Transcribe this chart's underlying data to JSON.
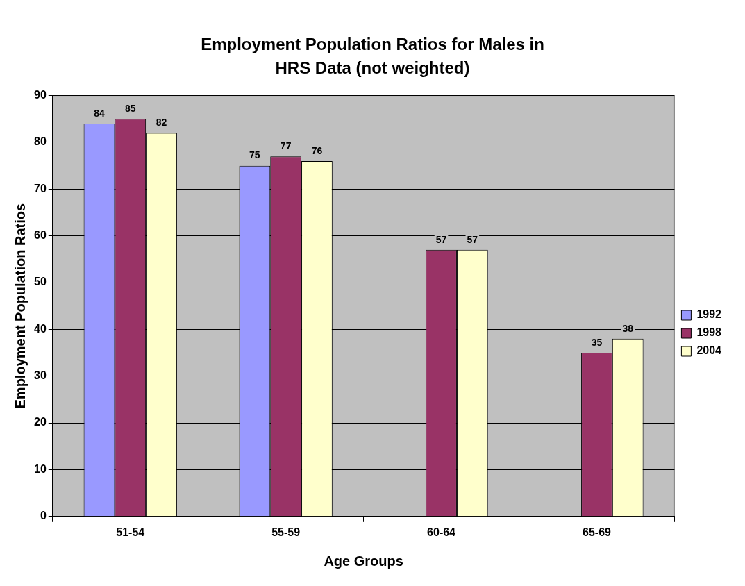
{
  "chart_data": {
    "type": "bar",
    "title": "Employment Population Ratios for Males in HRS Data (not weighted)",
    "xlabel": "Age Groups",
    "ylabel": "Employment Population Ratios",
    "categories": [
      "51-54",
      "55-59",
      "60-64",
      "65-69"
    ],
    "series": [
      {
        "name": "1992",
        "color": "#9999ff",
        "values": [
          84,
          75,
          null,
          null
        ]
      },
      {
        "name": "1998",
        "color": "#993366",
        "values": [
          85,
          77,
          57,
          35
        ]
      },
      {
        "name": "2004",
        "color": "#ffffcc",
        "values": [
          82,
          76,
          57,
          38
        ]
      }
    ],
    "ylim": [
      0,
      90
    ],
    "yticks": [
      0,
      10,
      20,
      30,
      40,
      50,
      60,
      70,
      80,
      90
    ],
    "grid": "y",
    "legend": "right",
    "data_labels": true
  }
}
